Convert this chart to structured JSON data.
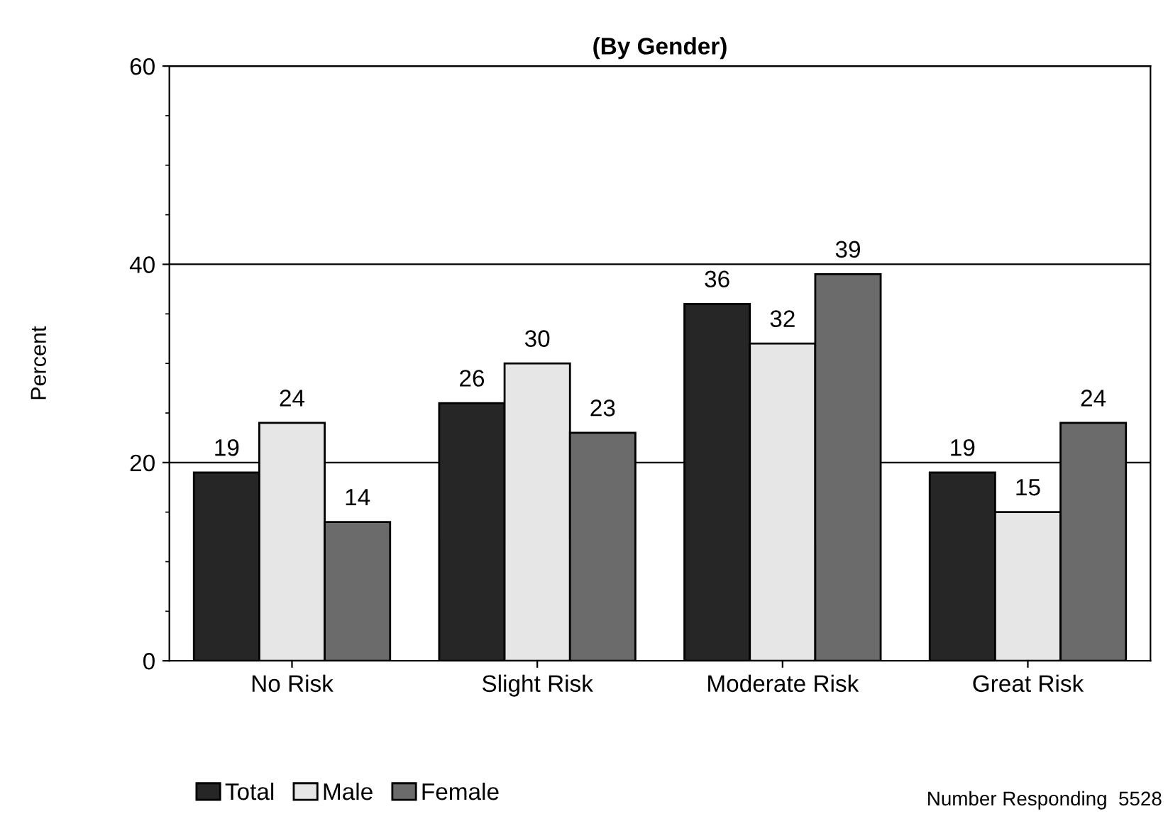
{
  "chart_data": {
    "type": "bar",
    "title": "(By Gender)",
    "ylabel": "Percent",
    "categories": [
      "No Risk",
      "Slight Risk",
      "Moderate Risk",
      "Great Risk"
    ],
    "series": [
      {
        "name": "Total",
        "color": "#262626",
        "values": [
          19,
          26,
          36,
          19
        ]
      },
      {
        "name": "Male",
        "color": "#e6e6e6",
        "values": [
          24,
          30,
          32,
          15
        ]
      },
      {
        "name": "Female",
        "color": "#6b6b6b",
        "values": [
          14,
          23,
          39,
          24
        ]
      }
    ],
    "ylim": [
      0,
      60
    ],
    "yticks": [
      0,
      20,
      40,
      60
    ],
    "grid": "y",
    "legend": "bottom left",
    "data_labels": true,
    "annotations": [
      "Number Responding  5528"
    ]
  }
}
